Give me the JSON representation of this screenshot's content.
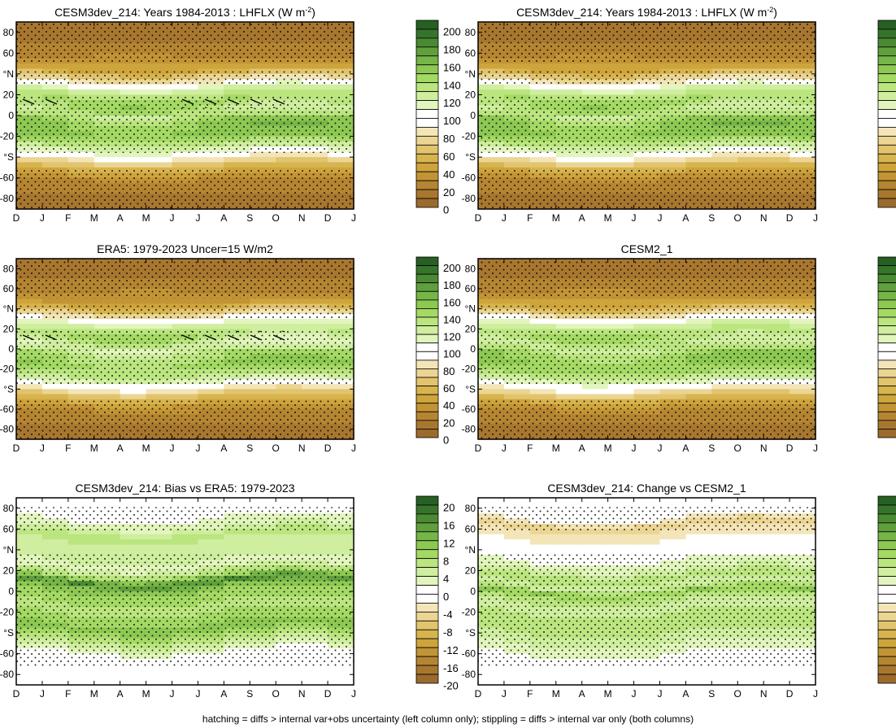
{
  "footer": "hatching = diffs > internal var+obs uncertainty (left column only); stippling = diffs > internal var only (both columns)",
  "colors": {
    "full_scale": [
      "#9b6a2c",
      "#a8772f",
      "#b58532",
      "#c29435",
      "#cea43c",
      "#d8b44e",
      "#e2c46e",
      "#ebd592",
      "#f3e5b8",
      "#ffffff",
      "#ffffff",
      "#e2f5bd",
      "#cfee9f",
      "#bbe57f",
      "#a4d964",
      "#8dc853",
      "#76b547",
      "#5fa03c",
      "#4a8a33",
      "#36742b",
      "#266022"
    ],
    "bias_scale": [
      "#9b6a2c",
      "#a8772f",
      "#b58532",
      "#c29435",
      "#cea43c",
      "#d8b44e",
      "#e2c46e",
      "#ebd592",
      "#f3e5b8",
      "#ffffff",
      "#ffffff",
      "#e2f5bd",
      "#cfee9f",
      "#bbe57f",
      "#a4d964",
      "#8dc853",
      "#76b547",
      "#5fa03c",
      "#4a8a33",
      "#36742b",
      "#266022"
    ]
  },
  "chart_data": [
    {
      "id": "p1",
      "type": "heatmap",
      "title": "CESM3dev_214: Years 1984-2013 : LHFLX (W m",
      "title_sup": "-2",
      "title_end": ")",
      "xlabel": "month",
      "ylabel": "latitude",
      "x_ticks": [
        "D",
        "J",
        "F",
        "M",
        "A",
        "M",
        "J",
        "J",
        "A",
        "S",
        "O",
        "N",
        "D",
        "J"
      ],
      "y_ticks": [
        "80",
        "60",
        "°N",
        "20",
        "0",
        "-20",
        "°S",
        "-60",
        "-80"
      ],
      "ylim": [
        -90,
        90
      ],
      "colorbar_labels": [
        "200",
        "180",
        "160",
        "140",
        "120",
        "100",
        "80",
        "60",
        "40",
        "20",
        "0"
      ],
      "colorbar_range": [
        -10,
        210
      ],
      "colorbar_step": 10,
      "zonal_profile": {
        "lat": [
          -90,
          -75,
          -60,
          -45,
          -35,
          -25,
          -15,
          -5,
          5,
          15,
          25,
          35,
          45,
          60,
          75,
          90
        ],
        "value": [
          0,
          10,
          20,
          60,
          100,
          130,
          145,
          140,
          120,
          135,
          115,
          70,
          35,
          15,
          8,
          0
        ]
      },
      "hatching": "equatorial band, partial"
    },
    {
      "id": "p2",
      "type": "heatmap",
      "title": "CESM3dev_214: Years 1984-2013 : LHFLX (W m",
      "title_sup": "-2",
      "title_end": ")",
      "xlabel": "month",
      "ylabel": "latitude",
      "x_ticks": [
        "D",
        "J",
        "F",
        "M",
        "A",
        "M",
        "J",
        "J",
        "A",
        "S",
        "O",
        "N",
        "D",
        "J"
      ],
      "y_ticks": [
        "80",
        "60",
        "°N",
        "20",
        "0",
        "-20",
        "°S",
        "-60",
        "-80"
      ],
      "ylim": [
        -90,
        90
      ],
      "colorbar_labels": [
        "200",
        "180",
        "160",
        "140",
        "120",
        "100",
        "80",
        "60",
        "40",
        "20",
        "0"
      ],
      "colorbar_range": [
        -10,
        210
      ],
      "colorbar_step": 10,
      "zonal_profile": {
        "lat": [
          -90,
          -75,
          -60,
          -45,
          -35,
          -25,
          -15,
          -5,
          5,
          15,
          25,
          35,
          45,
          60,
          75,
          90
        ],
        "value": [
          0,
          10,
          20,
          60,
          100,
          130,
          145,
          140,
          120,
          135,
          115,
          70,
          35,
          15,
          8,
          0
        ]
      },
      "hatching": "none"
    },
    {
      "id": "p3",
      "type": "heatmap",
      "title": "ERA5: 1979-2023 Uncer=15 W/m2",
      "xlabel": "month",
      "ylabel": "latitude",
      "x_ticks": [
        "D",
        "J",
        "F",
        "M",
        "A",
        "M",
        "J",
        "J",
        "A",
        "S",
        "O",
        "N",
        "D",
        "J"
      ],
      "y_ticks": [
        "80",
        "60",
        "°N",
        "20",
        "0",
        "-20",
        "°S",
        "-60",
        "-80"
      ],
      "ylim": [
        -90,
        90
      ],
      "colorbar_labels": [
        "200",
        "180",
        "160",
        "140",
        "120",
        "100",
        "80",
        "60",
        "40",
        "20",
        "0"
      ],
      "colorbar_range": [
        -10,
        210
      ],
      "colorbar_step": 10,
      "zonal_profile": {
        "lat": [
          -90,
          -75,
          -60,
          -45,
          -35,
          -25,
          -15,
          -5,
          5,
          15,
          25,
          35,
          45,
          60,
          75,
          90
        ],
        "value": [
          0,
          10,
          20,
          55,
          95,
          125,
          138,
          128,
          112,
          130,
          110,
          68,
          32,
          14,
          8,
          0
        ]
      },
      "hatching": "equatorial band, partial"
    },
    {
      "id": "p4",
      "type": "heatmap",
      "title": "CESM2_1",
      "xlabel": "month",
      "ylabel": "latitude",
      "x_ticks": [
        "D",
        "J",
        "F",
        "M",
        "A",
        "M",
        "J",
        "J",
        "A",
        "S",
        "O",
        "N",
        "D",
        "J"
      ],
      "y_ticks": [
        "80",
        "60",
        "°N",
        "20",
        "0",
        "-20",
        "°S",
        "-60",
        "-80"
      ],
      "ylim": [
        -90,
        90
      ],
      "colorbar_labels": [
        "200",
        "180",
        "160",
        "140",
        "120",
        "100",
        "80",
        "60",
        "40",
        "20",
        "0"
      ],
      "colorbar_range": [
        -10,
        210
      ],
      "colorbar_step": 10,
      "zonal_profile": {
        "lat": [
          -90,
          -75,
          -60,
          -45,
          -35,
          -25,
          -15,
          -5,
          5,
          15,
          25,
          35,
          45,
          60,
          75,
          90
        ],
        "value": [
          0,
          10,
          20,
          58,
          98,
          128,
          142,
          135,
          116,
          132,
          112,
          68,
          34,
          15,
          8,
          0
        ]
      },
      "hatching": "none"
    },
    {
      "id": "p5",
      "type": "heatmap",
      "title": "CESM3dev_214: Bias vs ERA5: 1979-2023",
      "xlabel": "month",
      "ylabel": "latitude",
      "x_ticks": [
        "D",
        "J",
        "F",
        "M",
        "A",
        "M",
        "J",
        "J",
        "A",
        "S",
        "O",
        "N",
        "D",
        "J"
      ],
      "y_ticks": [
        "80",
        "60",
        "°N",
        "20",
        "0",
        "-20",
        "°S",
        "-60",
        "-80"
      ],
      "ylim": [
        -90,
        90
      ],
      "colorbar_labels": [
        "20",
        "16",
        "12",
        "8",
        "4",
        "0",
        "-4",
        "-8",
        "-12",
        "-16",
        "-20"
      ],
      "colorbar_range": [
        -21,
        21
      ],
      "colorbar_step": 2,
      "zonal_profile": {
        "lat": [
          -90,
          -75,
          -65,
          -55,
          -45,
          -35,
          -25,
          -15,
          -5,
          5,
          10,
          15,
          25,
          35,
          45,
          55,
          65,
          75,
          90
        ],
        "value": [
          0,
          0,
          -2,
          2,
          6,
          10,
          8,
          6,
          8,
          10,
          16,
          8,
          2,
          4,
          4,
          6,
          2,
          0,
          0
        ]
      },
      "hatching": "none"
    },
    {
      "id": "p6",
      "type": "heatmap",
      "title": "CESM3dev_214: Change vs CESM2_1",
      "xlabel": "month",
      "ylabel": "latitude",
      "x_ticks": [
        "D",
        "J",
        "F",
        "M",
        "A",
        "M",
        "J",
        "J",
        "A",
        "S",
        "O",
        "N",
        "D",
        "J"
      ],
      "y_ticks": [
        "80",
        "60",
        "°N",
        "20",
        "0",
        "-20",
        "°S",
        "-60",
        "-80"
      ],
      "ylim": [
        -90,
        90
      ],
      "colorbar_labels": [
        "20",
        "16",
        "12",
        "8",
        "4",
        "0",
        "-4",
        "-8",
        "-12",
        "-16",
        "-20"
      ],
      "colorbar_range": [
        -21,
        21
      ],
      "colorbar_step": 2,
      "zonal_profile": {
        "lat": [
          -90,
          -75,
          -65,
          -55,
          -45,
          -35,
          -25,
          -15,
          -5,
          0,
          5,
          15,
          25,
          35,
          45,
          55,
          65,
          75,
          90
        ],
        "value": [
          0,
          0,
          0,
          2,
          4,
          6,
          6,
          4,
          6,
          10,
          4,
          6,
          2,
          0,
          -2,
          -4,
          -6,
          0,
          0
        ]
      },
      "hatching": "none"
    }
  ]
}
